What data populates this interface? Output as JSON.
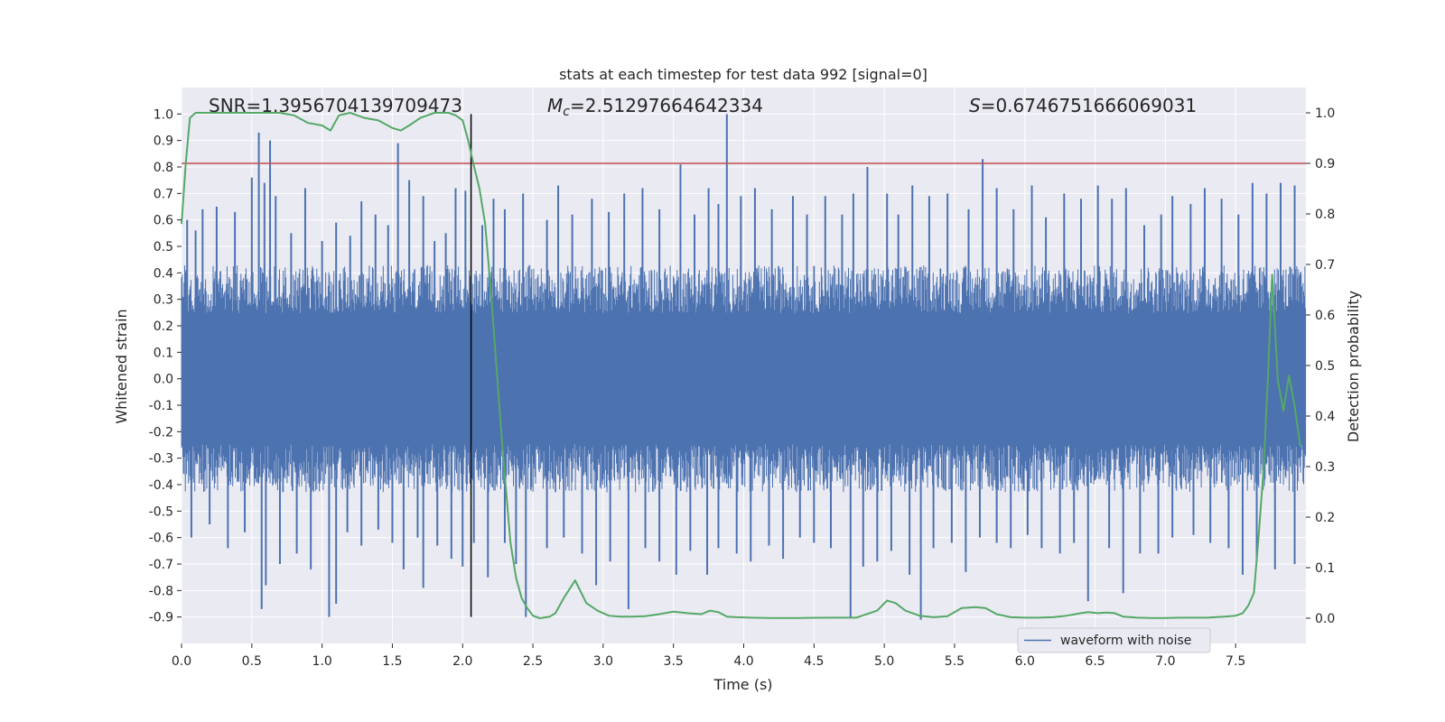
{
  "chart_data": {
    "type": "line",
    "title": "stats at each timestep for test data 992 [signal=0]",
    "xlabel": "Time (s)",
    "ylabel_left": "Whitened strain",
    "ylabel_right": "Detection probability",
    "xlim": [
      0.0,
      8.0
    ],
    "ylim_left": [
      -1.0,
      1.1
    ],
    "ylim_right": [
      -0.05,
      1.05
    ],
    "x_ticks": [
      "0.0",
      "0.5",
      "1.0",
      "1.5",
      "2.0",
      "2.5",
      "3.0",
      "3.5",
      "4.0",
      "4.5",
      "5.0",
      "5.5",
      "6.0",
      "6.5",
      "7.0",
      "7.5"
    ],
    "y_left_ticks": [
      "1.0",
      "0.9",
      "0.8",
      "0.7",
      "0.6",
      "0.5",
      "0.4",
      "0.3",
      "0.2",
      "0.1",
      "0.0",
      "-0.1",
      "-0.2",
      "-0.3",
      "-0.4",
      "-0.5",
      "-0.6",
      "-0.7",
      "-0.8",
      "-0.9"
    ],
    "y_right_ticks": [
      "1.0",
      "0.9",
      "0.8",
      "0.7",
      "0.6",
      "0.5",
      "0.4",
      "0.3",
      "0.2",
      "0.1",
      "0.0"
    ],
    "grid": true,
    "annotations": {
      "snr": "SNR=1.3956704139709473",
      "mc_symbol": "M",
      "mc_sub": "c",
      "mc_value": "=2.51297664642334",
      "s_symbol": "S",
      "s_value": "=0.6746751666069031"
    },
    "threshold_line": {
      "axis": "right",
      "y": 0.9,
      "color": "#c44e52"
    },
    "vertical_line": {
      "x": 2.06,
      "color": "#000000"
    },
    "series": [
      {
        "name": "waveform with noise",
        "axis": "left",
        "color": "#4c72b0",
        "envelope_typical": 0.33,
        "spikes": [
          [
            0.04,
            0.6
          ],
          [
            0.1,
            0.56
          ],
          [
            0.15,
            0.64
          ],
          [
            0.25,
            0.65
          ],
          [
            0.38,
            0.63
          ],
          [
            0.5,
            0.76
          ],
          [
            0.55,
            0.93
          ],
          [
            0.59,
            0.74
          ],
          [
            0.63,
            0.9
          ],
          [
            0.67,
            0.69
          ],
          [
            0.78,
            0.55
          ],
          [
            0.88,
            0.72
          ],
          [
            1.0,
            0.52
          ],
          [
            1.1,
            0.59
          ],
          [
            1.2,
            0.54
          ],
          [
            1.28,
            0.67
          ],
          [
            1.38,
            0.62
          ],
          [
            1.47,
            0.58
          ],
          [
            1.54,
            0.89
          ],
          [
            1.62,
            0.75
          ],
          [
            1.72,
            0.69
          ],
          [
            1.8,
            0.52
          ],
          [
            1.88,
            0.55
          ],
          [
            1.95,
            0.72
          ],
          [
            2.02,
            0.71
          ],
          [
            2.14,
            0.58
          ],
          [
            2.22,
            0.68
          ],
          [
            2.3,
            0.64
          ],
          [
            2.43,
            0.7
          ],
          [
            2.6,
            0.6
          ],
          [
            2.68,
            0.73
          ],
          [
            2.78,
            0.62
          ],
          [
            2.92,
            0.68
          ],
          [
            3.04,
            0.63
          ],
          [
            3.15,
            0.7
          ],
          [
            3.28,
            0.72
          ],
          [
            3.4,
            0.64
          ],
          [
            3.55,
            0.81
          ],
          [
            3.65,
            0.62
          ],
          [
            3.75,
            0.72
          ],
          [
            3.82,
            0.66
          ],
          [
            3.88,
            1.0
          ],
          [
            3.98,
            0.69
          ],
          [
            4.08,
            0.72
          ],
          [
            4.2,
            0.64
          ],
          [
            4.35,
            0.69
          ],
          [
            4.45,
            0.62
          ],
          [
            4.58,
            0.69
          ],
          [
            4.7,
            0.62
          ],
          [
            4.78,
            0.7
          ],
          [
            4.88,
            0.8
          ],
          [
            5.02,
            0.7
          ],
          [
            5.1,
            0.62
          ],
          [
            5.2,
            0.73
          ],
          [
            5.32,
            0.69
          ],
          [
            5.45,
            0.7
          ],
          [
            5.6,
            0.64
          ],
          [
            5.7,
            0.83
          ],
          [
            5.8,
            0.72
          ],
          [
            5.92,
            0.64
          ],
          [
            6.05,
            0.73
          ],
          [
            6.15,
            0.61
          ],
          [
            6.28,
            0.7
          ],
          [
            6.4,
            0.68
          ],
          [
            6.52,
            0.73
          ],
          [
            6.62,
            0.68
          ],
          [
            6.72,
            0.72
          ],
          [
            6.85,
            0.58
          ],
          [
            6.97,
            0.62
          ],
          [
            7.05,
            0.69
          ],
          [
            7.18,
            0.66
          ],
          [
            7.28,
            0.72
          ],
          [
            7.4,
            0.68
          ],
          [
            7.52,
            0.62
          ],
          [
            7.62,
            0.74
          ],
          [
            7.72,
            0.7
          ],
          [
            7.82,
            0.74
          ],
          [
            7.92,
            0.73
          ],
          [
            0.07,
            -0.6
          ],
          [
            0.2,
            -0.55
          ],
          [
            0.33,
            -0.64
          ],
          [
            0.45,
            -0.58
          ],
          [
            0.57,
            -0.87
          ],
          [
            0.6,
            -0.78
          ],
          [
            0.7,
            -0.7
          ],
          [
            0.82,
            -0.66
          ],
          [
            0.92,
            -0.72
          ],
          [
            1.05,
            -0.9
          ],
          [
            1.1,
            -0.85
          ],
          [
            1.18,
            -0.58
          ],
          [
            1.28,
            -0.63
          ],
          [
            1.4,
            -0.57
          ],
          [
            1.5,
            -0.62
          ],
          [
            1.58,
            -0.72
          ],
          [
            1.68,
            -0.6
          ],
          [
            1.72,
            -0.79
          ],
          [
            1.82,
            -0.63
          ],
          [
            1.92,
            -0.68
          ],
          [
            2.0,
            -0.71
          ],
          [
            2.08,
            -0.62
          ],
          [
            2.18,
            -0.75
          ],
          [
            2.3,
            -0.62
          ],
          [
            2.38,
            -0.7
          ],
          [
            2.45,
            -0.9
          ],
          [
            2.6,
            -0.64
          ],
          [
            2.72,
            -0.6
          ],
          [
            2.85,
            -0.66
          ],
          [
            2.95,
            -0.78
          ],
          [
            3.05,
            -0.69
          ],
          [
            3.18,
            -0.87
          ],
          [
            3.3,
            -0.64
          ],
          [
            3.4,
            -0.69
          ],
          [
            3.52,
            -0.74
          ],
          [
            3.62,
            -0.65
          ],
          [
            3.74,
            -0.74
          ],
          [
            3.82,
            -0.64
          ],
          [
            3.95,
            -0.66
          ],
          [
            4.05,
            -0.69
          ],
          [
            4.18,
            -0.63
          ],
          [
            4.28,
            -0.68
          ],
          [
            4.4,
            -0.6
          ],
          [
            4.5,
            -0.62
          ],
          [
            4.62,
            -0.64
          ],
          [
            4.76,
            -0.9
          ],
          [
            4.85,
            -0.71
          ],
          [
            4.95,
            -0.69
          ],
          [
            5.05,
            -0.65
          ],
          [
            5.18,
            -0.74
          ],
          [
            5.26,
            -0.91
          ],
          [
            5.35,
            -0.64
          ],
          [
            5.48,
            -0.62
          ],
          [
            5.58,
            -0.73
          ],
          [
            5.68,
            -0.6
          ],
          [
            5.8,
            -0.62
          ],
          [
            5.9,
            -0.64
          ],
          [
            6.02,
            -0.59
          ],
          [
            6.12,
            -0.64
          ],
          [
            6.25,
            -0.66
          ],
          [
            6.35,
            -0.62
          ],
          [
            6.45,
            -0.84
          ],
          [
            6.6,
            -0.64
          ],
          [
            6.7,
            -0.81
          ],
          [
            6.82,
            -0.66
          ],
          [
            6.95,
            -0.66
          ],
          [
            7.05,
            -0.6
          ],
          [
            7.2,
            -0.59
          ],
          [
            7.32,
            -0.62
          ],
          [
            7.45,
            -0.64
          ],
          [
            7.55,
            -0.74
          ],
          [
            7.65,
            -0.69
          ],
          [
            7.78,
            -0.72
          ],
          [
            7.92,
            -0.7
          ]
        ]
      },
      {
        "name": "detection probability",
        "axis": "right",
        "color": "#55a868",
        "x": [
          0.0,
          0.03,
          0.06,
          0.1,
          0.15,
          0.3,
          0.5,
          0.7,
          0.8,
          0.9,
          1.0,
          1.06,
          1.12,
          1.2,
          1.3,
          1.4,
          1.5,
          1.56,
          1.62,
          1.7,
          1.8,
          1.9,
          1.95,
          2.0,
          2.04,
          2.08,
          2.12,
          2.16,
          2.2,
          2.24,
          2.28,
          2.31,
          2.34,
          2.38,
          2.42,
          2.46,
          2.5,
          2.55,
          2.62,
          2.66,
          2.72,
          2.8,
          2.88,
          2.96,
          3.04,
          3.12,
          3.2,
          3.3,
          3.4,
          3.5,
          3.6,
          3.7,
          3.76,
          3.82,
          3.88,
          3.95,
          4.05,
          4.2,
          4.4,
          4.6,
          4.8,
          4.95,
          5.02,
          5.08,
          5.15,
          5.25,
          5.35,
          5.45,
          5.55,
          5.65,
          5.72,
          5.8,
          5.9,
          6.0,
          6.1,
          6.2,
          6.3,
          6.4,
          6.45,
          6.52,
          6.58,
          6.64,
          6.7,
          6.8,
          6.9,
          7.0,
          7.1,
          7.2,
          7.3,
          7.35,
          7.42,
          7.5,
          7.55,
          7.59,
          7.63,
          7.66,
          7.7,
          7.73,
          7.76,
          7.8,
          7.84,
          7.88,
          7.92,
          7.96
        ],
        "values": [
          0.78,
          0.9,
          0.99,
          1.0,
          1.0,
          1.0,
          1.0,
          1.0,
          0.995,
          0.98,
          0.975,
          0.965,
          0.995,
          1.0,
          0.99,
          0.985,
          0.97,
          0.965,
          0.975,
          0.99,
          1.0,
          1.0,
          0.995,
          0.985,
          0.945,
          0.895,
          0.85,
          0.78,
          0.65,
          0.5,
          0.35,
          0.25,
          0.15,
          0.08,
          0.04,
          0.02,
          0.005,
          0.0,
          0.003,
          0.01,
          0.04,
          0.075,
          0.03,
          0.015,
          0.005,
          0.003,
          0.003,
          0.004,
          0.008,
          0.013,
          0.01,
          0.008,
          0.015,
          0.012,
          0.003,
          0.002,
          0.001,
          0.0005,
          0.0005,
          0.001,
          0.001,
          0.015,
          0.035,
          0.03,
          0.015,
          0.005,
          0.002,
          0.004,
          0.02,
          0.022,
          0.02,
          0.008,
          0.002,
          0.001,
          0.001,
          0.002,
          0.005,
          0.01,
          0.012,
          0.01,
          0.011,
          0.01,
          0.003,
          0.001,
          0.0005,
          0.0005,
          0.001,
          0.001,
          0.001,
          0.002,
          0.003,
          0.005,
          0.01,
          0.025,
          0.05,
          0.15,
          0.3,
          0.48,
          0.68,
          0.47,
          0.41,
          0.48,
          0.42,
          0.34
        ]
      }
    ],
    "legend": {
      "entries": [
        "waveform with noise"
      ],
      "placement": "lower-right"
    }
  }
}
